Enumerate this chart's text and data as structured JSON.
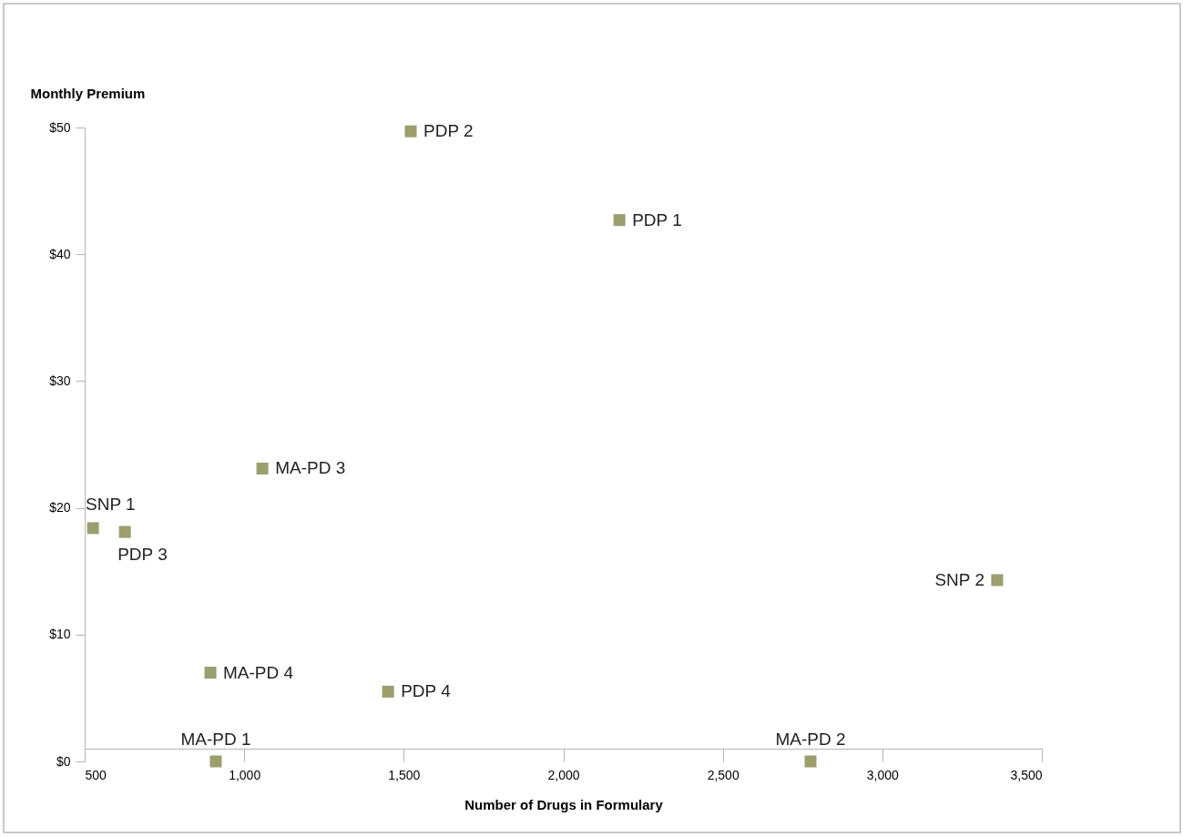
{
  "chart_data": {
    "type": "scatter",
    "xlabel": "Number of Drugs in Formulary",
    "ylabel": "Monthly Premium",
    "x": [
      1522,
      2176,
      1057,
      526,
      626,
      3360,
      894,
      1451,
      911,
      2775
    ],
    "series": [
      {
        "color": "#9c9e6e",
        "values": [
          49.7,
          42.7,
          23.1,
          18.4,
          18.1,
          14.3,
          7.0,
          5.5,
          0,
          0
        ]
      }
    ],
    "xlim": [
      500,
      3500
    ],
    "xticks": [
      {
        "value": 500,
        "label": "500"
      },
      {
        "value": 1000,
        "label": "1,000"
      },
      {
        "value": 1500,
        "label": "1,500"
      },
      {
        "value": 2000,
        "label": "2,000"
      },
      {
        "value": 2500,
        "label": "2,500"
      },
      {
        "value": 3000,
        "label": "3,000"
      },
      {
        "value": 3500,
        "label": "3,500"
      }
    ],
    "ylim": [
      0,
      50
    ],
    "yticks": [
      {
        "value": 0,
        "label": "$0"
      },
      {
        "value": 10,
        "label": "$10"
      },
      {
        "value": 20,
        "label": "$20"
      },
      {
        "value": 30,
        "label": "$30"
      },
      {
        "value": 40,
        "label": "$40"
      },
      {
        "value": 50,
        "label": "$50"
      }
    ],
    "marker": "square",
    "grid": false,
    "annotations": [
      {
        "text": "PDP 2",
        "x": 1522,
        "y": 49.7
      },
      {
        "text": "PDP 1",
        "x": 2176,
        "y": 42.7
      },
      {
        "text": "MA-PD 3",
        "x": 1057,
        "y": 23.1
      },
      {
        "text": "SNP 1",
        "x": 526,
        "y": 18.4
      },
      {
        "text": "PDP 3",
        "x": 626,
        "y": 18.1
      },
      {
        "text": "SNP 2",
        "x": 3360,
        "y": 14.3
      },
      {
        "text": "MA-PD 4",
        "x": 894,
        "y": 7.0
      },
      {
        "text": "PDP 4",
        "x": 1451,
        "y": 5.5
      },
      {
        "text": "MA-PD 1",
        "x": 911,
        "y": 0
      },
      {
        "text": "MA-PD 2",
        "x": 2775,
        "y": 0
      }
    ]
  }
}
